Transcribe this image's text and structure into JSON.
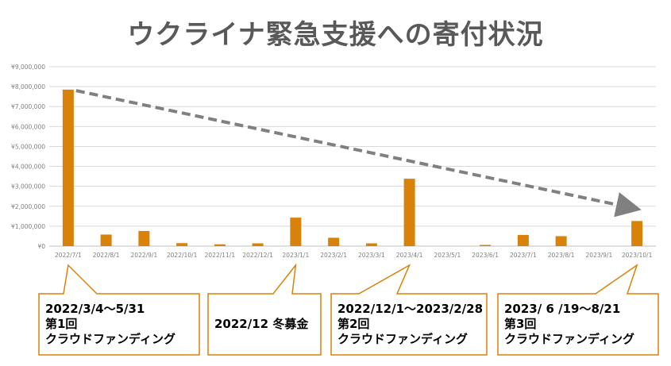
{
  "title": "ウクライナ緊急支援への寄付状況",
  "chart_data": {
    "type": "bar",
    "title": "ウクライナ緊急支援への寄付状況",
    "categories": [
      "2022/7/1",
      "2022/8/1",
      "2022/9/1",
      "2022/10/1",
      "2022/11/1",
      "2022/12/1",
      "2023/1/1",
      "2023/2/1",
      "2023/3/1",
      "2023/4/1",
      "2023/5/1",
      "2023/6/1",
      "2023/7/1",
      "2023/8/1",
      "2023/9/1",
      "2023/10/1"
    ],
    "values": [
      7850000,
      580000,
      760000,
      150000,
      90000,
      140000,
      1430000,
      420000,
      140000,
      3380000,
      0,
      60000,
      560000,
      500000,
      0,
      1260000
    ],
    "ylim": [
      0,
      9000000
    ],
    "yticks": [
      "¥0",
      "¥1,000,000",
      "¥2,000,000",
      "¥3,000,000",
      "¥4,000,000",
      "¥5,000,000",
      "¥6,000,000",
      "¥7,000,000",
      "¥8,000,000",
      "¥9,000,000"
    ],
    "grid": true,
    "bar_color": "#D9820A",
    "trend_arrow": {
      "from_category": "2022/7/1",
      "from_value": 7800000,
      "to_category": "2023/10/1",
      "to_value": 1950000,
      "color": "#808080",
      "style": "dashed"
    }
  },
  "callouts": [
    {
      "lines": [
        "2022/3/4～5/31",
        "第1回",
        "クラウドファンディング"
      ],
      "points_to": "2022/7/1"
    },
    {
      "lines": [
        "2022/12 冬募金"
      ],
      "points_to": "2023/1/1"
    },
    {
      "lines": [
        "2022/12/1～2023/2/28",
        "第2回",
        "クラウドファンディング"
      ],
      "points_to": "2023/4/1"
    },
    {
      "lines": [
        "2023/ 6 /19～8/21",
        "第3回",
        "クラウドファンディング"
      ],
      "points_to": "2023/10/1"
    }
  ],
  "colors": {
    "callout_border": "#D9820A",
    "title": "#595959",
    "axis_text": "#7F7F7F",
    "grid": "#D9D9D9"
  }
}
